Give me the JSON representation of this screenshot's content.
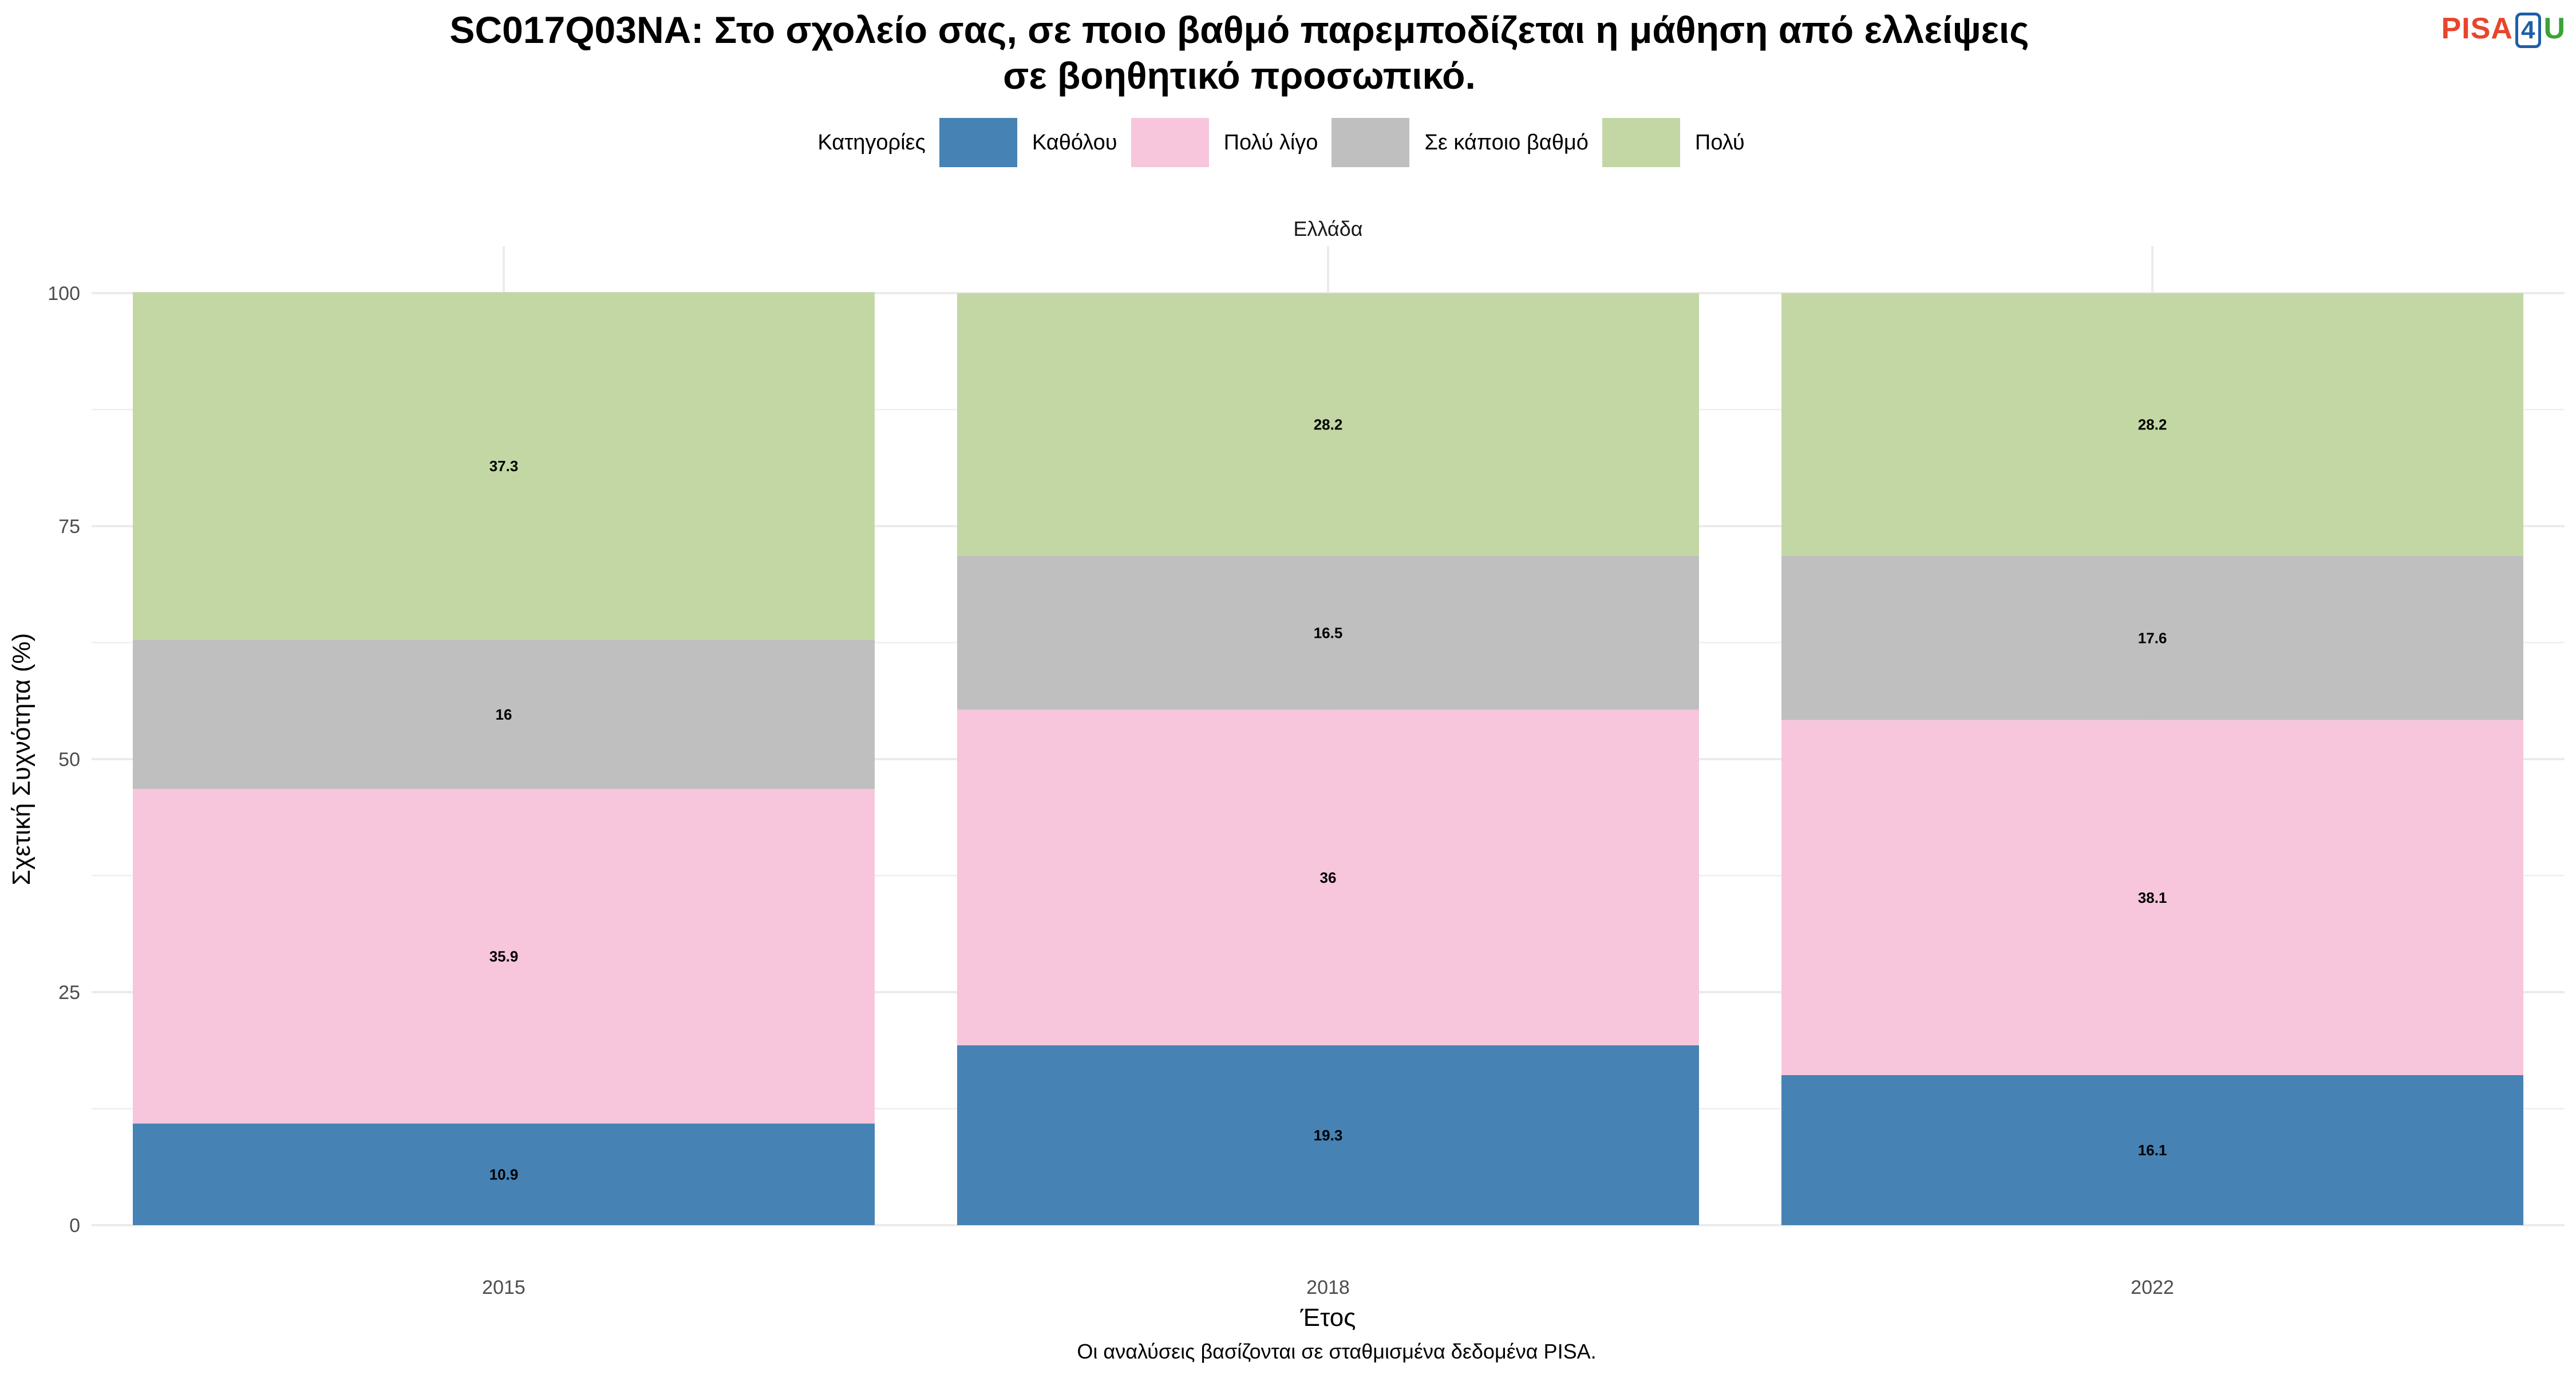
{
  "title_lines": [
    "SC017Q03NA: Στο σχολείο σας, σε ποιο βαθμό παρεμποδίζεται η μάθηση από ελλείψεις",
    "σε βοηθητικό προσωπικό."
  ],
  "logo": {
    "part1": "PISA",
    "part2": "4",
    "part3": "U"
  },
  "legend": {
    "title": "Κατηγορίες",
    "items": [
      {
        "label": "Καθόλου",
        "color": "#4682b4"
      },
      {
        "label": "Πολύ λίγο",
        "color": "#f7c6dc"
      },
      {
        "label": "Σε κάποιο βαθμό",
        "color": "#bfbfbf"
      },
      {
        "label": "Πολύ",
        "color": "#c3d7a5"
      }
    ]
  },
  "caption": "Οι αναλύσεις βασίζονται σε σταθμισμένα δεδομένα PISA.",
  "chart_data": {
    "type": "bar",
    "stacked": true,
    "facet": "Ελλάδα",
    "categories": [
      "2015",
      "2018",
      "2022"
    ],
    "series": [
      {
        "name": "Καθόλου",
        "values": [
          10.9,
          19.3,
          16.1
        ],
        "labels": [
          "10.9",
          "19.3",
          "16.1"
        ],
        "color": "#4682b4"
      },
      {
        "name": "Πολύ λίγο",
        "values": [
          35.9,
          36,
          38.1
        ],
        "labels": [
          "35.9",
          "36",
          "38.1"
        ],
        "color": "#f7c6dc"
      },
      {
        "name": "Σε κάποιο βαθμό",
        "values": [
          16,
          16.5,
          17.6
        ],
        "labels": [
          "16",
          "16.5",
          "17.6"
        ],
        "color": "#bfbfbf"
      },
      {
        "name": "Πολύ",
        "values": [
          37.3,
          28.2,
          28.2
        ],
        "labels": [
          "37.3",
          "28.2",
          "28.2"
        ],
        "color": "#c3d7a5"
      }
    ],
    "xlabel": "Έτος",
    "ylabel": "Σχετική Συχνότητα (%)",
    "ylim": [
      0,
      100
    ],
    "yticks": [
      0,
      25,
      50,
      75,
      100
    ],
    "grid": true,
    "legend_position": "top"
  }
}
